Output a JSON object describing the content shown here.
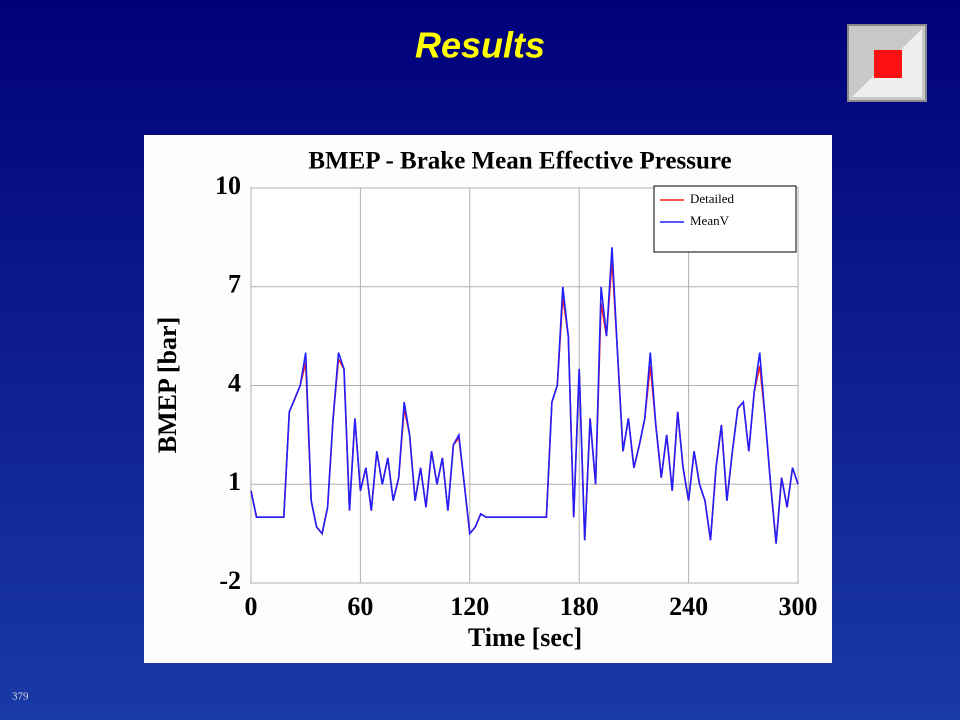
{
  "slide": {
    "title": "Results",
    "page_number": "379"
  },
  "chart_data": {
    "type": "line",
    "title": "BMEP - Brake Mean Effective Pressure",
    "x_label": "Time [sec]",
    "y_label": "BMEP [bar]",
    "x": [
      0,
      3,
      6,
      9,
      12,
      15,
      18,
      21,
      24,
      27,
      30,
      33,
      36,
      39,
      42,
      45,
      48,
      51,
      54,
      57,
      60,
      63,
      66,
      69,
      72,
      75,
      78,
      81,
      84,
      87,
      90,
      93,
      96,
      99,
      102,
      105,
      108,
      111,
      114,
      117,
      120,
      123,
      126,
      129,
      132,
      135,
      138,
      141,
      144,
      147,
      150,
      153,
      156,
      159,
      162,
      165,
      168,
      171,
      174,
      177,
      180,
      183,
      186,
      189,
      192,
      195,
      198,
      201,
      204,
      207,
      210,
      213,
      216,
      219,
      222,
      225,
      228,
      231,
      234,
      237,
      240,
      243,
      246,
      249,
      252,
      255,
      258,
      261,
      264,
      267,
      270,
      273,
      276,
      279,
      282,
      285,
      288,
      291,
      294,
      297,
      300
    ],
    "series": [
      {
        "name": "Detailed",
        "color": "#ff2020",
        "values": [
          0.8,
          0,
          0,
          0,
          0,
          0,
          0,
          3.2,
          3.6,
          4,
          4.7,
          0.5,
          -0.3,
          -0.5,
          0.3,
          3,
          4.8,
          4.5,
          0.2,
          3,
          0.8,
          1.5,
          0.2,
          2,
          1,
          1.8,
          0.5,
          1.2,
          3.3,
          2.5,
          0.5,
          1.5,
          0.3,
          2,
          1,
          1.8,
          0.2,
          2.2,
          2.4,
          1,
          -0.5,
          -0.3,
          0.1,
          0,
          0,
          0,
          0,
          0,
          0,
          0,
          0,
          0,
          0,
          0,
          0,
          3.5,
          4,
          6.7,
          5.5,
          0,
          4.5,
          -0.7,
          3,
          1,
          6.5,
          5.5,
          7.8,
          5,
          2,
          3,
          1.5,
          2.2,
          3,
          4.6,
          2.8,
          1.2,
          2.5,
          0.8,
          3.2,
          1.5,
          0.5,
          2,
          1,
          0.5,
          -0.7,
          1.5,
          2.8,
          0.5,
          2,
          3.3,
          3.5,
          2,
          3.8,
          4.6,
          3,
          1,
          -0.8,
          1.2,
          0.3,
          1.5,
          1
        ]
      },
      {
        "name": "MeanV",
        "color": "#2020ff",
        "values": [
          0.8,
          0,
          0,
          0,
          0,
          0,
          0,
          3.2,
          3.6,
          4,
          5,
          0.5,
          -0.3,
          -0.5,
          0.3,
          3,
          5,
          4.5,
          0.2,
          3,
          0.8,
          1.5,
          0.2,
          2,
          1,
          1.8,
          0.5,
          1.2,
          3.5,
          2.5,
          0.5,
          1.5,
          0.3,
          2,
          1,
          1.8,
          0.2,
          2.2,
          2.5,
          1,
          -0.5,
          -0.3,
          0.1,
          0,
          0,
          0,
          0,
          0,
          0,
          0,
          0,
          0,
          0,
          0,
          0,
          3.5,
          4,
          7,
          5.5,
          0,
          4.5,
          -0.7,
          3,
          1,
          7,
          5.5,
          8.2,
          5,
          2,
          3,
          1.5,
          2.2,
          3,
          5,
          2.8,
          1.2,
          2.5,
          0.8,
          3.2,
          1.5,
          0.5,
          2,
          1,
          0.5,
          -0.7,
          1.5,
          2.8,
          0.5,
          2,
          3.3,
          3.5,
          2,
          3.8,
          5,
          3,
          1,
          -0.8,
          1.2,
          0.3,
          1.5,
          1
        ]
      }
    ],
    "xlim": [
      0,
      300
    ],
    "xticks": [
      0,
      60,
      120,
      180,
      240,
      300
    ],
    "ylim": [
      -2,
      10
    ],
    "yticks": [
      -2,
      1,
      4,
      7,
      10
    ],
    "grid": true,
    "legend": "upper right"
  }
}
